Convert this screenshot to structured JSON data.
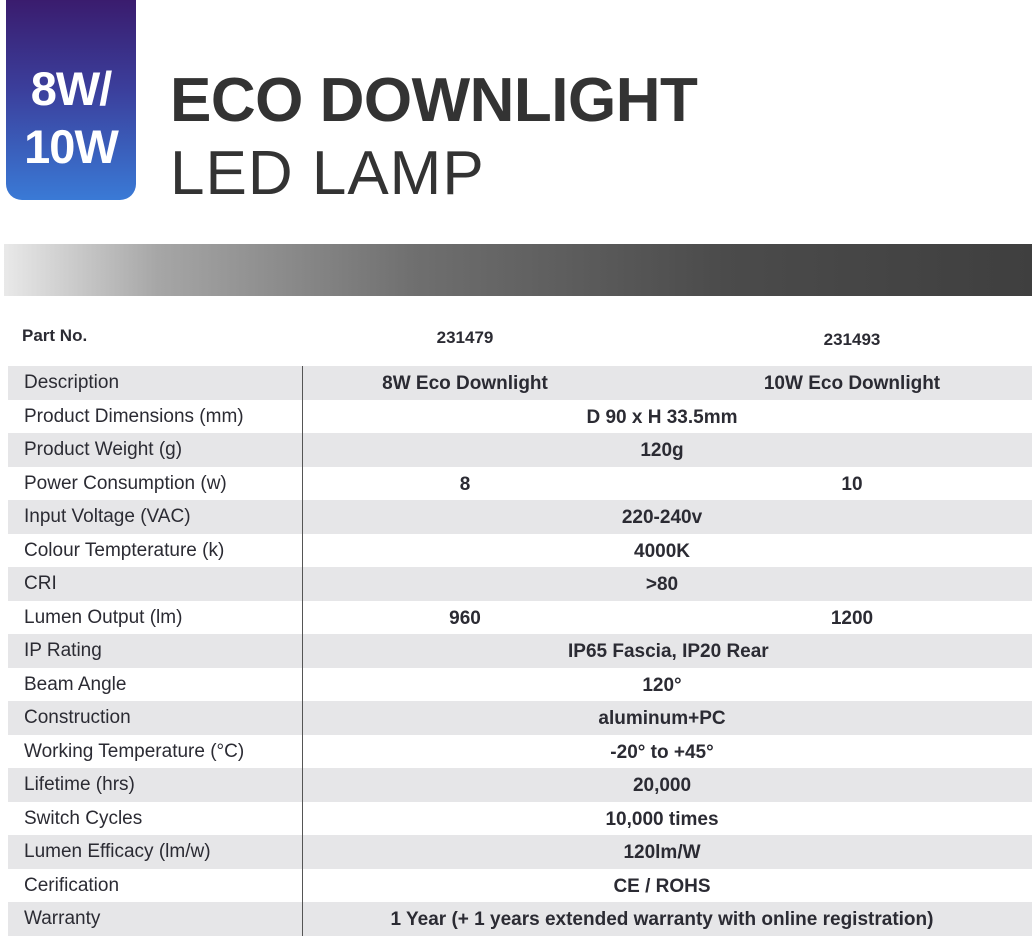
{
  "badge": {
    "line1": "8W/",
    "line2": "10W"
  },
  "title": {
    "line1": "ECO DOWNLIGHT",
    "line2": "LED LAMP"
  },
  "header": {
    "label": "Part No.",
    "col1": "231479",
    "col2": "231493"
  },
  "rows": [
    {
      "label": "Description",
      "mode": "split",
      "v1": "8W Eco Downlight",
      "v2": "10W Eco Downlight"
    },
    {
      "label": "Product Dimensions (mm)",
      "mode": "shared",
      "value": "D 90 x H 33.5mm"
    },
    {
      "label": "Product Weight (g)",
      "mode": "shared",
      "value": "120g"
    },
    {
      "label": "Power Consumption (w)",
      "mode": "split",
      "v1": "8",
      "v2": "10"
    },
    {
      "label": "Input Voltage (VAC)",
      "mode": "shared",
      "value": "220-240v"
    },
    {
      "label": "Colour Tempterature (k)",
      "mode": "shared",
      "value": "4000K"
    },
    {
      "label": "CRI",
      "mode": "shared",
      "value": ">80"
    },
    {
      "label": "Lumen  Output (lm)",
      "mode": "split",
      "v1": "960",
      "v2": "1200"
    },
    {
      "label": "IP Rating",
      "mode": "shared",
      "value": "IP65 Fascia, IP20 Rear"
    },
    {
      "label": "Beam Angle",
      "mode": "shared",
      "value": "120°"
    },
    {
      "label": "Construction",
      "mode": "shared",
      "value": "aluminum+PC"
    },
    {
      "label": "Working Temperature (°C)",
      "mode": "shared",
      "value": "-20° to +45°"
    },
    {
      "label": "Lifetime (hrs)",
      "mode": "shared",
      "value": "20,000"
    },
    {
      "label": "Switch Cycles",
      "mode": "shared",
      "value": "10,000 times"
    },
    {
      "label": "Lumen Efficacy (lm/w)",
      "mode": "shared",
      "value": "120lm/W"
    },
    {
      "label": "Cerification",
      "mode": "shared",
      "value": "CE / ROHS"
    },
    {
      "label": "Warranty",
      "mode": "wide",
      "value": "1 Year (+ 1 years extended warranty with online registration)"
    }
  ]
}
